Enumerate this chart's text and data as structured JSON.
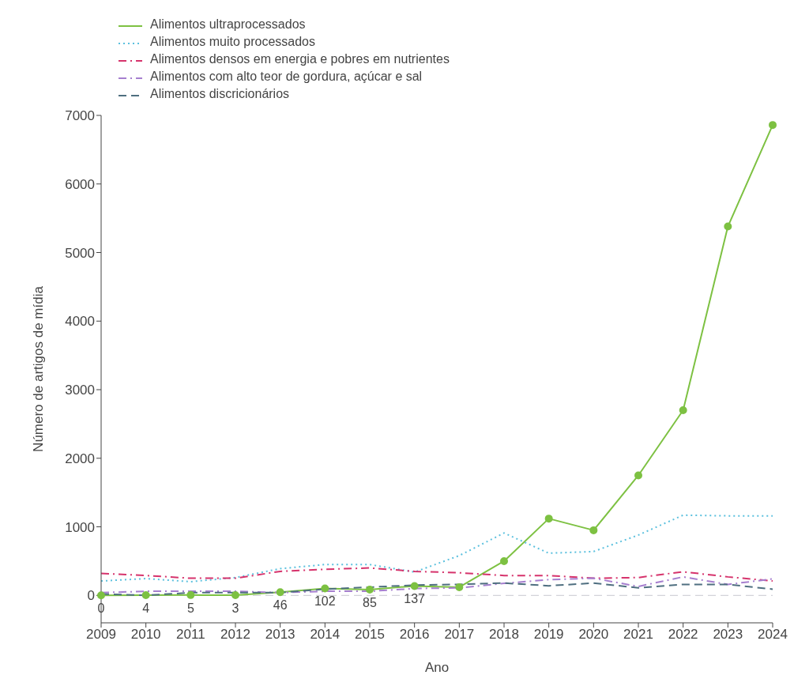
{
  "chart_data": {
    "type": "line",
    "xlabel": "Ano",
    "ylabel": "Número de artigos de mídia",
    "categories": [
      "2009",
      "2010",
      "2011",
      "2012",
      "2013",
      "2014",
      "2015",
      "2016",
      "2017",
      "2018",
      "2019",
      "2020",
      "2021",
      "2022",
      "2023",
      "2024"
    ],
    "series": [
      {
        "name": "Alimentos ultraprocessados",
        "color": "#7dc142",
        "line_style": "solid",
        "marker": "circle",
        "values": [
          0,
          4,
          5,
          3,
          46,
          102,
          85,
          137,
          120,
          500,
          1120,
          950,
          1750,
          2700,
          5380,
          6860
        ],
        "value_labels": [
          "0",
          "4",
          "5",
          "3",
          "46",
          "102",
          "85",
          "137",
          null,
          null,
          null,
          null,
          null,
          null,
          null,
          null
        ]
      },
      {
        "name": "Alimentos muito processados",
        "color": "#5bc0de",
        "line_style": "dotted",
        "marker": "none",
        "values": [
          210,
          245,
          200,
          260,
          390,
          450,
          450,
          340,
          580,
          910,
          615,
          640,
          880,
          1170,
          1160,
          1160
        ]
      },
      {
        "name": "Alimentos densos em energia e pobres em nutrientes",
        "color": "#d6336c",
        "line_style": "dashdot",
        "marker": "none",
        "values": [
          320,
          290,
          250,
          250,
          350,
          380,
          400,
          350,
          330,
          290,
          290,
          250,
          260,
          345,
          270,
          210
        ]
      },
      {
        "name": "Alimentos com alto teor de gordura, açúcar e sal",
        "color": "#a67fcf",
        "line_style": "dashdot",
        "marker": "none",
        "values": [
          40,
          60,
          60,
          60,
          40,
          60,
          60,
          100,
          110,
          175,
          230,
          250,
          130,
          270,
          160,
          240
        ]
      },
      {
        "name": "Alimentos discricionários",
        "color": "#4f6f80",
        "line_style": "dashed",
        "marker": "none",
        "values": [
          20,
          0,
          40,
          40,
          40,
          90,
          120,
          150,
          160,
          180,
          140,
          180,
          110,
          160,
          160,
          90
        ]
      }
    ],
    "ylim": [
      -400,
      7000
    ],
    "yticks": [
      0,
      1000,
      2000,
      3000,
      4000,
      5000,
      6000,
      7000
    ],
    "ref_lines": [
      {
        "axis": "y",
        "value": 0,
        "color": "#c8c8d0",
        "line_style": "dashed"
      }
    ],
    "grid": false,
    "legend": "top left"
  }
}
